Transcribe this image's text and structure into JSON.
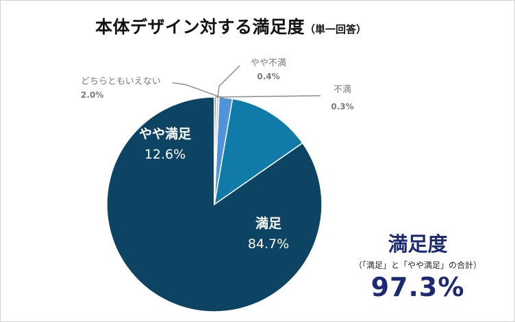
{
  "title": {
    "main": "本体デザイン対する満足度",
    "sub": "（単一回答）"
  },
  "chart_data": {
    "type": "pie",
    "title": "本体デザイン対する満足度（単一回答）",
    "slices": [
      {
        "label": "満足",
        "value": 84.7,
        "value_label": "84.7%",
        "color": "#0e4463"
      },
      {
        "label": "やや満足",
        "value": 12.6,
        "value_label": "12.6%",
        "color": "#107aa8"
      },
      {
        "label": "どちらともいえない",
        "value": 2.0,
        "value_label": "2.0%",
        "color": "#4f93da"
      },
      {
        "label": "やや不満",
        "value": 0.4,
        "value_label": "0.4%",
        "color": "#d0d0d0"
      },
      {
        "label": "不満",
        "value": 0.3,
        "value_label": "0.3%",
        "color": "#8a8a8a"
      }
    ],
    "start_angle": "12 o'clock",
    "direction": "counterclockwise",
    "legend": "none"
  },
  "summary": {
    "title": "満足度",
    "note": "（「満足」と「やや満足」の合計）",
    "total": "97.3%"
  }
}
